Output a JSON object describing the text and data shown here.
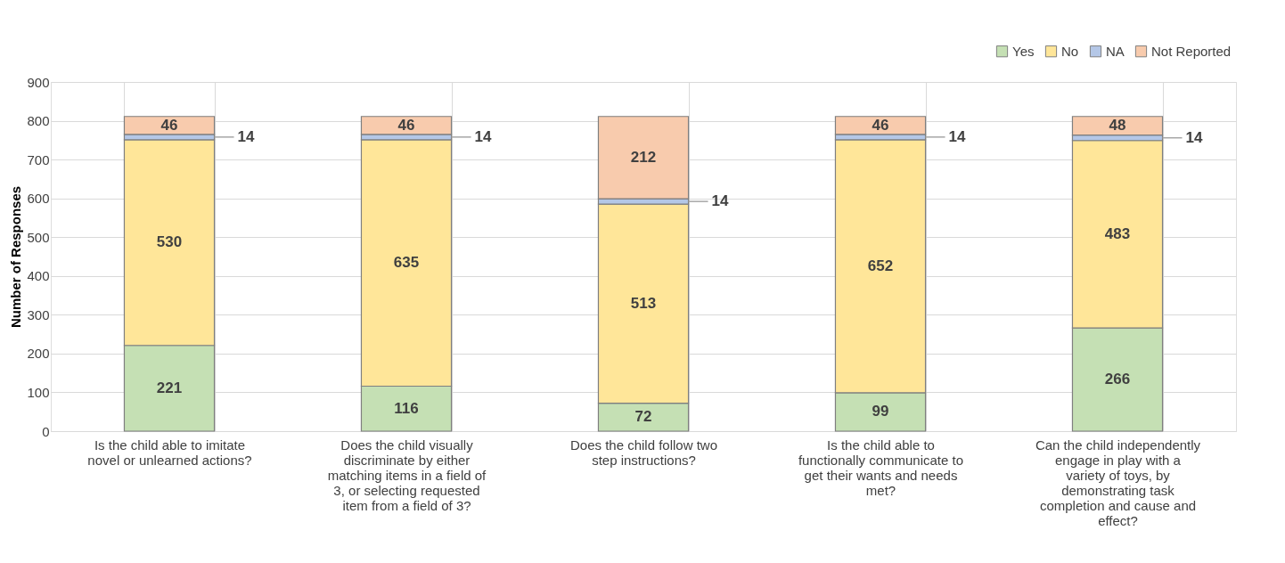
{
  "chart_data": {
    "type": "bar",
    "stacked": true,
    "ylabel": "Number of Responses",
    "categories": [
      "Is the child able to imitate novel or unlearned actions?",
      "Does the child visually discriminate by either matching items in a field of 3, or selecting requested item from a field of 3?",
      "Does the child follow two step instructions?",
      "Is the child able to functionally communicate to get their wants and needs met?",
      "Can the child independently engage in play with a variety of toys, by demonstrating task completion and cause and effect?"
    ],
    "series": [
      {
        "name": "Yes",
        "color": "#c5e0b4",
        "values": [
          221,
          116,
          72,
          99,
          266
        ]
      },
      {
        "name": "No",
        "color": "#ffe699",
        "values": [
          530,
          635,
          513,
          652,
          483
        ]
      },
      {
        "name": "NA",
        "color": "#b4c7e7",
        "values": [
          14,
          14,
          14,
          14,
          14
        ]
      },
      {
        "name": "Not Reported",
        "color": "#f8cbad",
        "values": [
          46,
          46,
          212,
          46,
          48
        ]
      }
    ],
    "ylim": [
      0,
      900
    ],
    "yticks": [
      0,
      100,
      200,
      300,
      400,
      500,
      600,
      700,
      800,
      900
    ],
    "grid": true,
    "legend": "top right",
    "data_labels": true
  }
}
